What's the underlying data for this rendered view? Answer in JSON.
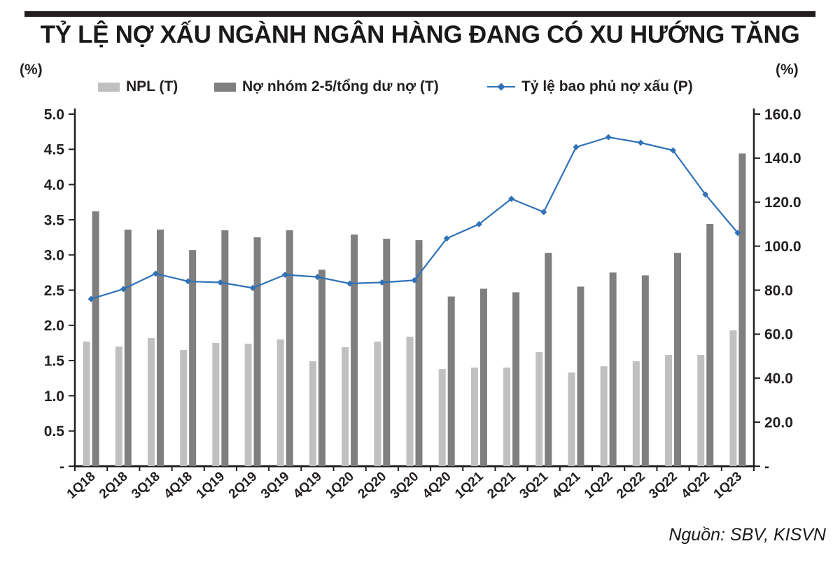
{
  "header": {
    "title": "TỶ LỆ NỢ XẤU NGÀNH NGÂN HÀNG ĐANG CÓ XU HƯỚNG TĂNG"
  },
  "legend": {
    "items": [
      {
        "label": "NPL (T)",
        "color": "#c0c0c0",
        "marker": "bar-swatch"
      },
      {
        "label": "Nợ nhóm 2-5/tổng dư nợ (T)",
        "color": "#7f7f7f",
        "marker": "bar-swatch"
      },
      {
        "label": "Tỷ lệ bao phủ nợ xấu (P)",
        "color": "#2f72b8",
        "marker": "line-diamond-swatch"
      }
    ]
  },
  "source": "Nguồn: SBV, KISVN",
  "colors": {
    "axis": "#231f20",
    "npl_bar": "#c0c0c0",
    "group25_bar": "#7f7f7f",
    "coverage_line": "#2f72b8",
    "top_rule": "#231f20"
  },
  "chart_data": {
    "type": "combo",
    "title": "TỶ LỆ NỢ XẤU NGÀNH NGÂN HÀNG ĐANG CÓ XU HƯỚNG TĂNG",
    "categories": [
      "1Q18",
      "2Q18",
      "3Q18",
      "4Q18",
      "1Q19",
      "2Q19",
      "3Q19",
      "4Q19",
      "1Q20",
      "2Q20",
      "3Q20",
      "4Q20",
      "1Q21",
      "2Q21",
      "3Q21",
      "4Q21",
      "1Q22",
      "2Q22",
      "3Q22",
      "4Q22",
      "1Q23"
    ],
    "series": [
      {
        "name": "NPL (T)",
        "type": "bar",
        "axis": "left",
        "color": "#c0c0c0",
        "values": [
          1.77,
          1.7,
          1.82,
          1.65,
          1.75,
          1.74,
          1.8,
          1.49,
          1.69,
          1.77,
          1.84,
          1.38,
          1.4,
          1.4,
          1.62,
          1.33,
          1.42,
          1.49,
          1.58,
          1.58,
          1.93
        ]
      },
      {
        "name": "Nợ nhóm 2-5/tổng dư nợ (T)",
        "type": "bar",
        "axis": "left",
        "color": "#7f7f7f",
        "values": [
          3.62,
          3.36,
          3.36,
          3.07,
          3.35,
          3.25,
          3.35,
          2.79,
          3.29,
          3.23,
          3.21,
          2.41,
          2.52,
          2.47,
          3.03,
          2.55,
          2.75,
          2.71,
          3.03,
          3.44,
          4.44
        ]
      },
      {
        "name": "Tỷ lệ bao phủ nợ xấu (P)",
        "type": "line",
        "axis": "right",
        "color": "#2f72b8",
        "values": [
          76,
          80.5,
          87.5,
          84,
          83.5,
          81,
          87,
          86,
          83,
          83.5,
          84.5,
          103.5,
          110,
          121.5,
          115.5,
          145,
          149.5,
          147,
          143.5,
          123.5,
          106
        ]
      }
    ],
    "left_axis": {
      "unit": "(%)",
      "range": [
        0,
        5
      ],
      "ticks": [
        "5.0",
        "4.5",
        "4.0",
        "3.5",
        "3.0",
        "2.5",
        "2.0",
        "1.5",
        "1.0",
        "0.5",
        "-"
      ]
    },
    "right_axis": {
      "unit": "(%)",
      "range": [
        0,
        160
      ],
      "ticks": [
        "160.0",
        "140.0",
        "120.0",
        "100.0",
        "80.0",
        "60.0",
        "40.0",
        "20.0",
        "-"
      ]
    },
    "grid": false,
    "legend_position": "top",
    "source": "Nguồn: SBV, KISVN"
  }
}
